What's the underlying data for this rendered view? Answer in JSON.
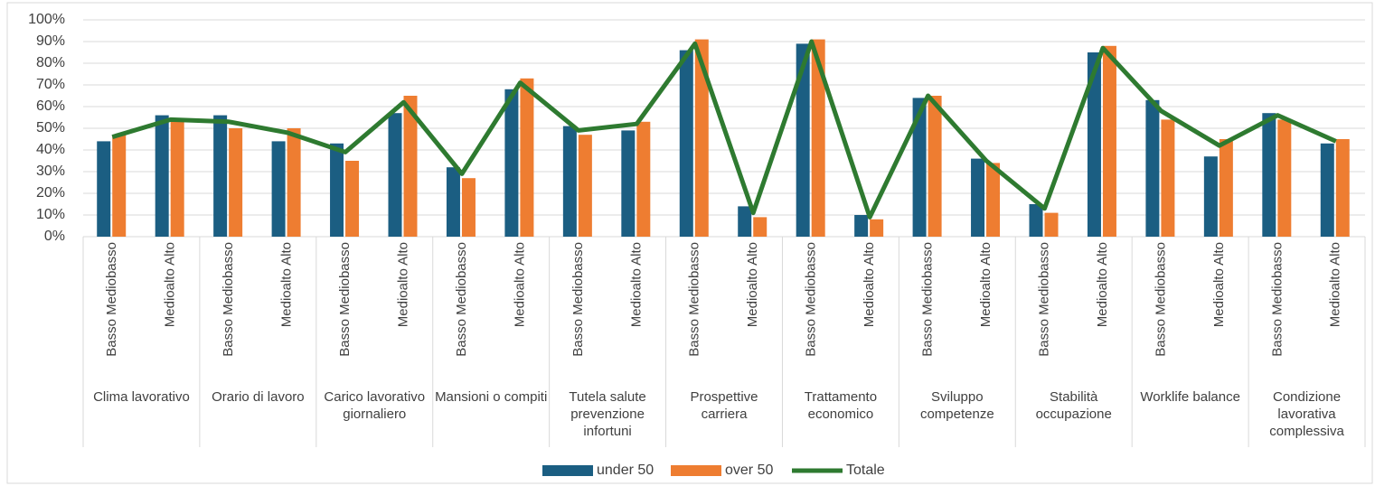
{
  "chart_data": {
    "type": "bar-line",
    "groups": [
      "Clima lavorativo",
      "Orario di lavoro",
      "Carico lavorativo giornaliero",
      "Mansioni o compiti",
      "Tutela salute prevenzione infortuni",
      "Prospettive carriera",
      "Trattamento economico",
      "Sviluppo competenze",
      "Stabilità occupazione",
      "Worklife balance",
      "Condizione lavorativa complessiva"
    ],
    "categories": [
      "Basso Mediobasso",
      "Medioalto Alto",
      "Basso Mediobasso",
      "Medioalto Alto",
      "Basso Mediobasso",
      "Medioalto Alto",
      "Basso Mediobasso",
      "Medioalto Alto",
      "Basso Mediobasso",
      "Medioalto Alto",
      "Basso Mediobasso",
      "Medioalto Alto",
      "Basso Mediobasso",
      "Medioalto Alto",
      "Basso Mediobasso",
      "Medioalto Alto",
      "Basso Mediobasso",
      "Medioalto Alto",
      "Basso Mediobasso",
      "Medioalto Alto",
      "Basso Mediobasso",
      "Medioalto Alto"
    ],
    "series": [
      {
        "name": "under 50",
        "type": "bar",
        "color": "#1b5e82",
        "values": [
          44,
          56,
          56,
          44,
          43,
          57,
          32,
          68,
          51,
          49,
          86,
          14,
          89,
          10,
          64,
          36,
          15,
          85,
          63,
          37,
          57,
          43
        ]
      },
      {
        "name": "over 50",
        "type": "bar",
        "color": "#ee7d31",
        "values": [
          47,
          53,
          50,
          50,
          35,
          65,
          27,
          73,
          47,
          53,
          91,
          9,
          91,
          8,
          65,
          34,
          11,
          88,
          54,
          45,
          54,
          45
        ]
      },
      {
        "name": "Totale",
        "type": "line",
        "color": "#2e7a30",
        "values": [
          46,
          54,
          53,
          48,
          39,
          62,
          29,
          71,
          49,
          52,
          89,
          11,
          90,
          9,
          65,
          35,
          13,
          87,
          58,
          42,
          56,
          44
        ]
      }
    ],
    "ylim": [
      0,
      100
    ],
    "yticks": [
      {
        "value": 0,
        "label": "0%"
      },
      {
        "value": 10,
        "label": "10%"
      },
      {
        "value": 20,
        "label": "20%"
      },
      {
        "value": 30,
        "label": "30%"
      },
      {
        "value": 40,
        "label": "40%"
      },
      {
        "value": 50,
        "label": "50%"
      },
      {
        "value": 60,
        "label": "60%"
      },
      {
        "value": 70,
        "label": "70%"
      },
      {
        "value": 80,
        "label": "80%"
      },
      {
        "value": 90,
        "label": "90%"
      },
      {
        "value": 100,
        "label": "100%"
      }
    ],
    "grid": true,
    "legend": "bottom"
  }
}
